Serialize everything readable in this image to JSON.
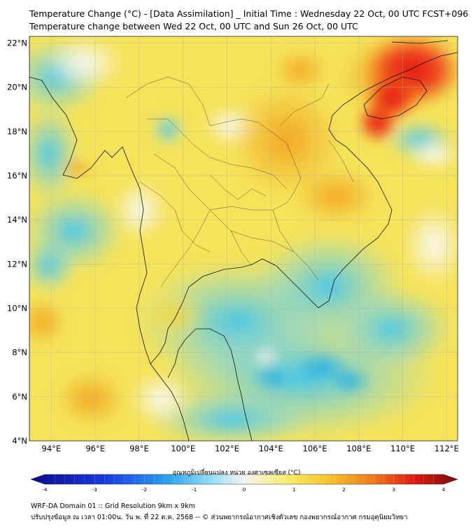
{
  "header": {
    "title_line1": "Temperature Change (°C) - [Data Assimilation] _ Initial Time : Wednesday 22 Oct, 00 UTC FCST+096",
    "title_line2": "Temperature change between Wed 22 Oct, 00 UTC and Sun 26 Oct, 00 UTC"
  },
  "map": {
    "lat_labels": [
      "22°N",
      "20°N",
      "18°N",
      "16°N",
      "14°N",
      "12°N",
      "10°N",
      "8°N",
      "6°N",
      "4°N"
    ],
    "lon_labels": [
      "94°E",
      "96°E",
      "98°E",
      "100°E",
      "102°E",
      "104°E",
      "106°E",
      "108°E",
      "110°E",
      "112°E"
    ],
    "lat_range": [
      4,
      22.3
    ],
    "lon_range": [
      93,
      112.5
    ],
    "gridlines": true
  },
  "colorbar": {
    "label": "อุณหภูมิเปลี่ยนแปลง หน่วย องศาเซลเซียส (°C)",
    "ticks": [
      "-4",
      "-3",
      "-2",
      "-1",
      "0",
      "1",
      "2",
      "3",
      "4"
    ],
    "range": [
      -4,
      4
    ]
  },
  "footer": {
    "line1": "WRF-DA Domain 01 :: Grid Resolution 9km x 9km",
    "line2": "ปรับปรุงข้อมูล ณ เวลา 01:00น. วัน พ. ที่ 22 ต.ค. 2568 -- © ส่วนพยากรณ์อากาศเชิงตัวเลข กองพยากรณ์อากาศ กรมอุตุนิยมวิทยา"
  },
  "colors": {
    "cold_dark": "#0a0a8c",
    "cold": "#38c6f0",
    "neutral": "#f4f4f4",
    "warm": "#f5e63a",
    "hot": "#f08a1c",
    "hottest": "#e01010",
    "hot_dark": "#7a0a0a"
  }
}
